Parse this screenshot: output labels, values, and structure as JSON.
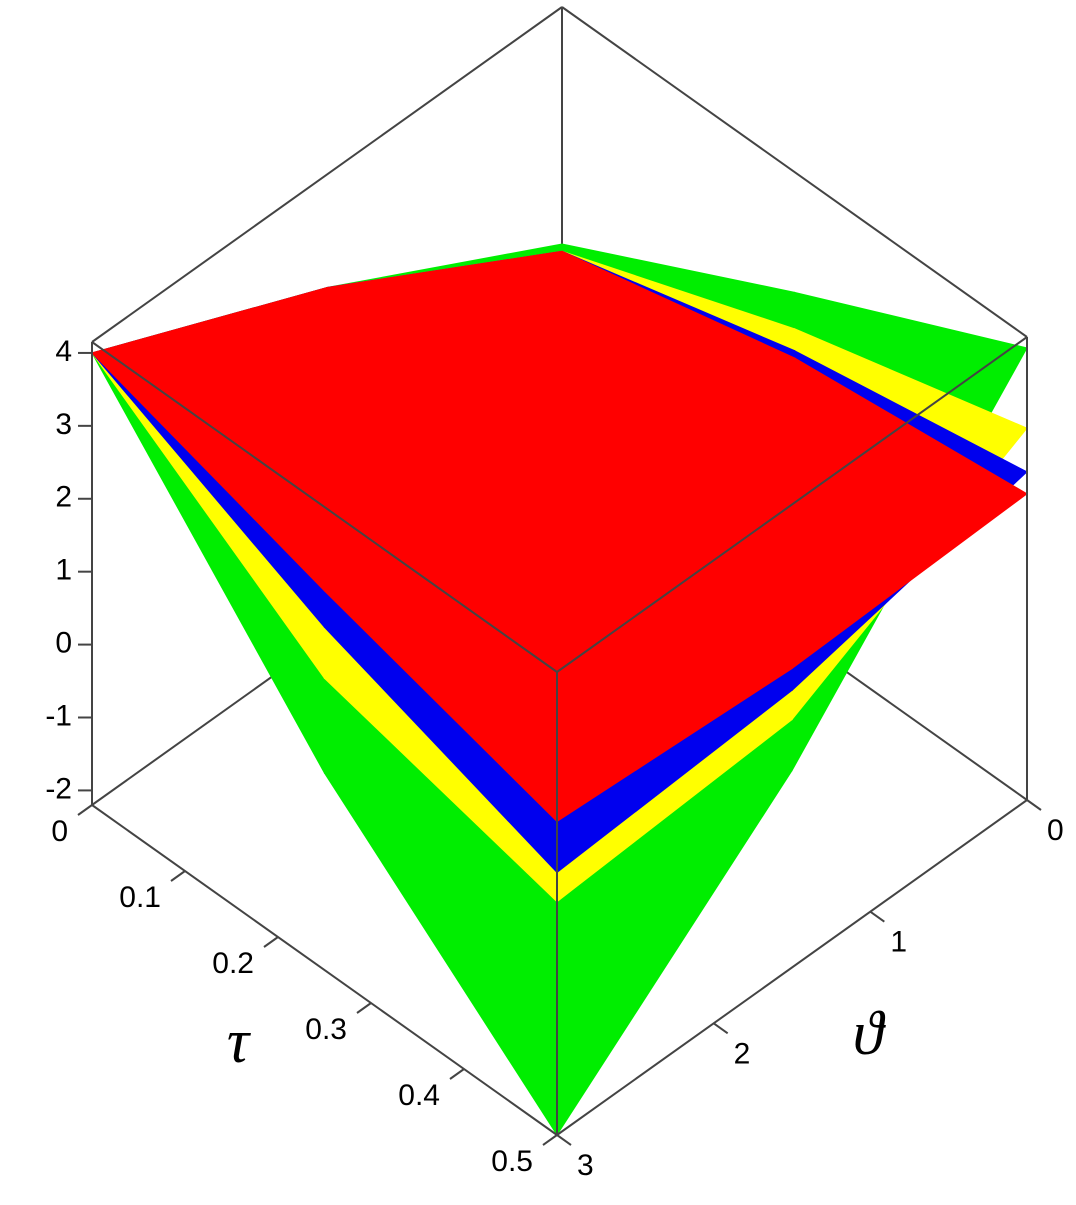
{
  "chart_data": {
    "type": "surface",
    "xlabel": "τ",
    "ylabel": "ϑ",
    "x": [
      0,
      0.25,
      0.5
    ],
    "y": [
      0,
      1.5,
      3
    ],
    "series": [
      {
        "color": "#00ee00",
        "z": [
          [
            0.9,
            2.6,
            4
          ],
          [
            2.5,
            0.5,
            0.5
          ],
          [
            4.0,
            0.5,
            -2.2
          ]
        ]
      },
      {
        "color": "#ffff00",
        "z": [
          [
            0.8,
            2.6,
            4
          ],
          [
            2.0,
            1.5,
            1.8
          ],
          [
            2.9,
            1.2,
            1.0
          ]
        ]
      },
      {
        "color": "#0000ee",
        "z": [
          [
            0.8,
            2.6,
            4
          ],
          [
            1.7,
            1.9,
            2.5
          ],
          [
            2.3,
            1.6,
            1.4
          ]
        ]
      },
      {
        "color": "#ff0000",
        "z": [
          [
            0.8,
            2.6,
            4
          ],
          [
            1.6,
            2.2,
            3.0
          ],
          [
            2.0,
            1.9,
            2.1
          ]
        ]
      }
    ],
    "xlim": [
      0,
      0.5
    ],
    "ylim": [
      0,
      3
    ],
    "zlim": [
      -2.2,
      4.15
    ],
    "xticks": [
      0,
      0.1,
      0.2,
      0.3,
      0.4,
      0.5
    ],
    "yticks": [
      0,
      1,
      2,
      3
    ],
    "zticks": [
      -2,
      -1,
      0,
      1,
      2,
      3,
      4
    ]
  }
}
